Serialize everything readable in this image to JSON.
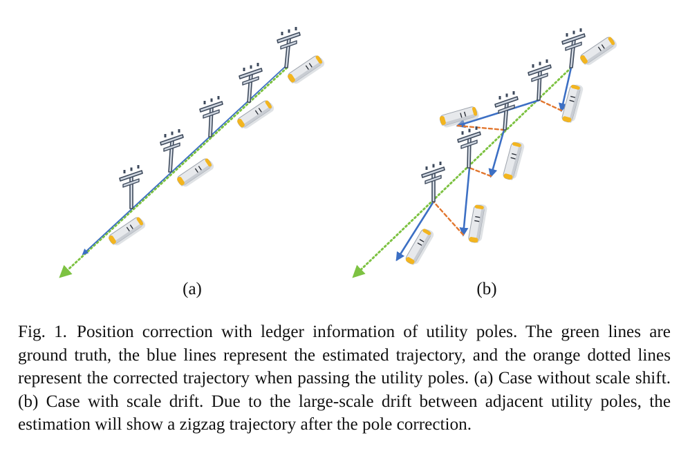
{
  "figure": {
    "colors": {
      "ground_truth": "#7dc242",
      "estimated": "#3c6fc4",
      "corrected": "#e2762e",
      "pole": "#3e4a5c",
      "train_body": "#e7e9ec",
      "train_accent": "#f3b51f"
    },
    "panels": [
      {
        "id": "a",
        "label": "(a)"
      },
      {
        "id": "b",
        "label": "(b)"
      }
    ]
  },
  "caption": {
    "number": "Fig. 1.",
    "text": "Position correction with ledger information of utility poles. The green lines are ground truth, the blue lines represent the estimated trajectory, and the orange dotted lines represent the corrected trajectory when passing the utility poles. (a) Case without scale shift. (b) Case with scale drift. Due to the large-scale drift between adjacent utility poles, the estimation will show a zigzag trajectory after the pole correction."
  }
}
